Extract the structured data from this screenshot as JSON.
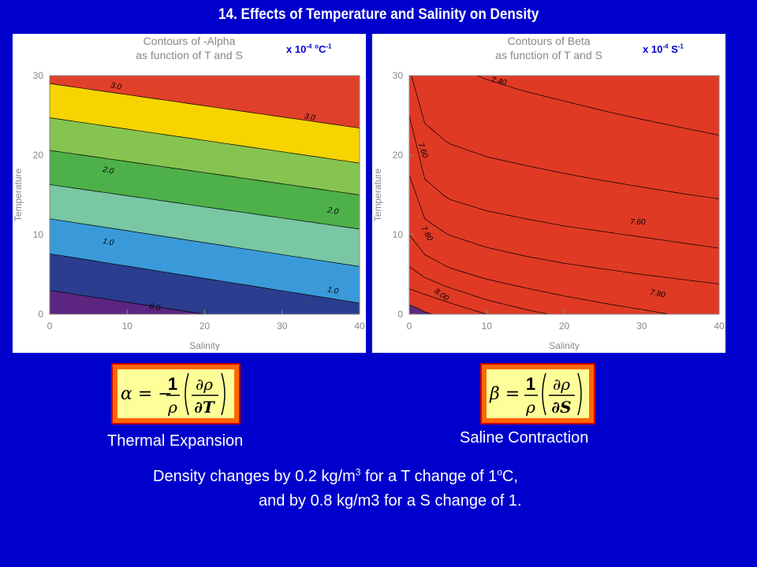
{
  "slide": {
    "title": "14. Effects of Temperature and Salinity on Density",
    "left_units": {
      "base": "x 10",
      "exp": "-4",
      "o": "o",
      "unit": "C",
      "unit_exp": "-1"
    },
    "right_units": {
      "base": "x 10",
      "exp": "-4",
      "unit": "S",
      "unit_exp": "-1"
    },
    "left_caption": "Thermal Expansion",
    "right_caption": "Saline Contraction",
    "alpha_formula": {
      "lhs": "α = −",
      "one": "1",
      "rho": "ρ",
      "partial_rho": "∂ρ",
      "partial_var": "∂T"
    },
    "beta_formula": {
      "lhs": "β =",
      "one": "1",
      "rho": "ρ",
      "partial_rho": "∂ρ",
      "partial_var": "∂S"
    },
    "line1": {
      "a": "Density changes by 0.2 kg/m",
      "sup1": "3",
      "b": " for a T change of 1",
      "sup2": "o",
      "c": "C,"
    },
    "line2": "and by 0.8 kg/m3 for a S change of 1."
  },
  "chart_data": [
    {
      "type": "contour",
      "title": "Contours of -Alpha",
      "subtitle": "as function of T and S",
      "xlabel": "Salinity",
      "ylabel": "Temperature",
      "xlim": [
        0,
        40
      ],
      "ylim": [
        0,
        30
      ],
      "xticks": [
        0,
        10,
        20,
        30,
        40
      ],
      "yticks": [
        0,
        10,
        20,
        30
      ],
      "levels": [
        0.0,
        0.5,
        1.0,
        1.5,
        2.0,
        2.5,
        3.0
      ],
      "bands": [
        {
          "lo": -0.5,
          "hi": 0.0,
          "color": "#5b2580"
        },
        {
          "lo": 0.0,
          "hi": 0.5,
          "color": "#2b3d8f"
        },
        {
          "lo": 0.5,
          "hi": 1.0,
          "color": "#3a9ad9"
        },
        {
          "lo": 1.0,
          "hi": 1.5,
          "color": "#79c7a3"
        },
        {
          "lo": 1.5,
          "hi": 2.0,
          "color": "#4db04a"
        },
        {
          "lo": 2.0,
          "hi": 2.5,
          "color": "#86c451"
        },
        {
          "lo": 2.5,
          "hi": 3.0,
          "color": "#f6d400"
        },
        {
          "lo": 3.0,
          "hi": 3.5,
          "color": "#e0402a"
        }
      ],
      "contours": [
        {
          "value": 0.0,
          "T_at_S0": 3.0,
          "T_at_S40": -3.0
        },
        {
          "value": 0.5,
          "T_at_S0": 7.6,
          "T_at_S40": 1.4
        },
        {
          "value": 1.0,
          "T_at_S0": 12.0,
          "T_at_S40": 6.0
        },
        {
          "value": 1.5,
          "T_at_S0": 16.3,
          "T_at_S40": 10.7
        },
        {
          "value": 2.0,
          "T_at_S0": 20.6,
          "T_at_S40": 15.0
        },
        {
          "value": 2.5,
          "T_at_S0": 24.7,
          "T_at_S40": 19.0
        },
        {
          "value": 3.0,
          "T_at_S0": 29.0,
          "T_at_S40": 23.4
        }
      ],
      "labels": [
        {
          "text": "3.0",
          "S": 8.5,
          "T": 28.4,
          "angle": 12
        },
        {
          "text": "3.0",
          "S": 33.5,
          "T": 24.5,
          "angle": 12
        },
        {
          "text": "2.0",
          "S": 7.5,
          "T": 17.8,
          "angle": 12
        },
        {
          "text": "2.0",
          "S": 36.5,
          "T": 12.7,
          "angle": 12
        },
        {
          "text": "1.0",
          "S": 7.5,
          "T": 8.8,
          "angle": 12
        },
        {
          "text": "1.0",
          "S": 36.5,
          "T": 2.7,
          "angle": 12
        },
        {
          "text": "0.0",
          "S": 13.5,
          "T": 0.6,
          "angle": 12
        }
      ]
    },
    {
      "type": "contour",
      "title": "Contours of Beta",
      "subtitle": "as function of T and S",
      "xlabel": "Salinity",
      "ylabel": "Temperature",
      "xlim": [
        0,
        40
      ],
      "ylim": [
        0,
        30
      ],
      "xticks": [
        0,
        10,
        20,
        30,
        40
      ],
      "yticks": [
        0,
        10,
        20,
        30
      ],
      "levels": [
        7.4,
        7.5,
        7.6,
        7.7,
        7.8,
        7.9,
        8.0,
        8.1
      ],
      "bands": [
        {
          "lo": 7.3,
          "hi": 7.4,
          "color": "#5b2a7e"
        },
        {
          "lo": 7.4,
          "hi": 7.5,
          "color": "#34438f"
        },
        {
          "lo": 7.5,
          "hi": 7.6,
          "color": "#3e6ab4"
        },
        {
          "lo": 7.6,
          "hi": 7.7,
          "color": "#7cc8cf"
        },
        {
          "lo": 7.7,
          "hi": 7.8,
          "color": "#55b367"
        },
        {
          "lo": 7.8,
          "hi": 7.9,
          "color": "#3f9f49"
        },
        {
          "lo": 7.9,
          "hi": 8.0,
          "color": "#9fd05b"
        },
        {
          "lo": 8.0,
          "hi": 8.1,
          "color": "#f39b23"
        },
        {
          "lo": 8.1,
          "hi": 8.2,
          "color": "#e03a25"
        }
      ],
      "contours": [
        {
          "value": 7.4,
          "points": [
            [
              0,
              40
            ],
            [
              5,
              31.5
            ],
            [
              10,
              29.5
            ],
            [
              15,
              28.0
            ],
            [
              20,
              26.8
            ],
            [
              25,
              25.6
            ],
            [
              30,
              24.5
            ],
            [
              35,
              23.5
            ],
            [
              40,
              22.5
            ]
          ]
        },
        {
          "value": 7.5,
          "points": [
            [
              0,
              31.0
            ],
            [
              2,
              24.0
            ],
            [
              5,
              21.5
            ],
            [
              10,
              19.8
            ],
            [
              15,
              18.7
            ],
            [
              20,
              17.7
            ],
            [
              25,
              16.8
            ],
            [
              30,
              16.0
            ],
            [
              35,
              15.2
            ],
            [
              40,
              14.5
            ]
          ]
        },
        {
          "value": 7.6,
          "points": [
            [
              0,
              25.0
            ],
            [
              2,
              17.0
            ],
            [
              5,
              14.5
            ],
            [
              10,
              13.0
            ],
            [
              15,
              12.0
            ],
            [
              20,
              11.1
            ],
            [
              25,
              10.4
            ],
            [
              30,
              9.7
            ],
            [
              35,
              9.0
            ],
            [
              40,
              8.3
            ]
          ]
        },
        {
          "value": 7.7,
          "points": [
            [
              0,
              17.5
            ],
            [
              2,
              12.0
            ],
            [
              5,
              10.0
            ],
            [
              10,
              8.4
            ],
            [
              15,
              7.3
            ],
            [
              20,
              6.4
            ],
            [
              25,
              5.7
            ],
            [
              30,
              5.0
            ],
            [
              35,
              4.4
            ],
            [
              40,
              3.8
            ]
          ]
        },
        {
          "value": 7.8,
          "points": [
            [
              0,
              10.0
            ],
            [
              2,
              7.5
            ],
            [
              5,
              5.9
            ],
            [
              10,
              4.4
            ],
            [
              15,
              3.3
            ],
            [
              20,
              2.3
            ],
            [
              25,
              1.4
            ],
            [
              30,
              0.6
            ],
            [
              33,
              0.1
            ],
            [
              35,
              -0.3
            ],
            [
              40,
              -1.2
            ]
          ]
        },
        {
          "value": 7.9,
          "points": [
            [
              0,
              6.0
            ],
            [
              2,
              4.6
            ],
            [
              5,
              3.4
            ],
            [
              10,
              1.8
            ],
            [
              15,
              0.6
            ],
            [
              18,
              0.0
            ],
            [
              20,
              -0.4
            ],
            [
              24,
              -1.2
            ]
          ]
        },
        {
          "value": 8.0,
          "points": [
            [
              0,
              3.2
            ],
            [
              2,
              2.5
            ],
            [
              5,
              1.5
            ],
            [
              8,
              0.6
            ],
            [
              10,
              0.0
            ],
            [
              12,
              -0.5
            ]
          ]
        },
        {
          "value": 8.1,
          "points": [
            [
              0,
              1.2
            ],
            [
              1,
              0.8
            ],
            [
              2,
              0.3
            ],
            [
              3,
              0.0
            ],
            [
              4,
              -0.4
            ]
          ]
        }
      ],
      "labels": [
        {
          "text": "7.40",
          "S": 11.5,
          "T": 29.0,
          "angle": 12
        },
        {
          "text": "7.60",
          "S": 1.5,
          "T": 20.5,
          "angle": 70
        },
        {
          "text": "7.60",
          "S": 29.5,
          "T": 11.3,
          "angle": 0
        },
        {
          "text": "7.80",
          "S": 2.0,
          "T": 10.0,
          "angle": 60
        },
        {
          "text": "7.80",
          "S": 32.0,
          "T": 2.3,
          "angle": 12
        },
        {
          "text": "8.00",
          "S": 4.0,
          "T": 2.2,
          "angle": 35
        }
      ]
    }
  ]
}
